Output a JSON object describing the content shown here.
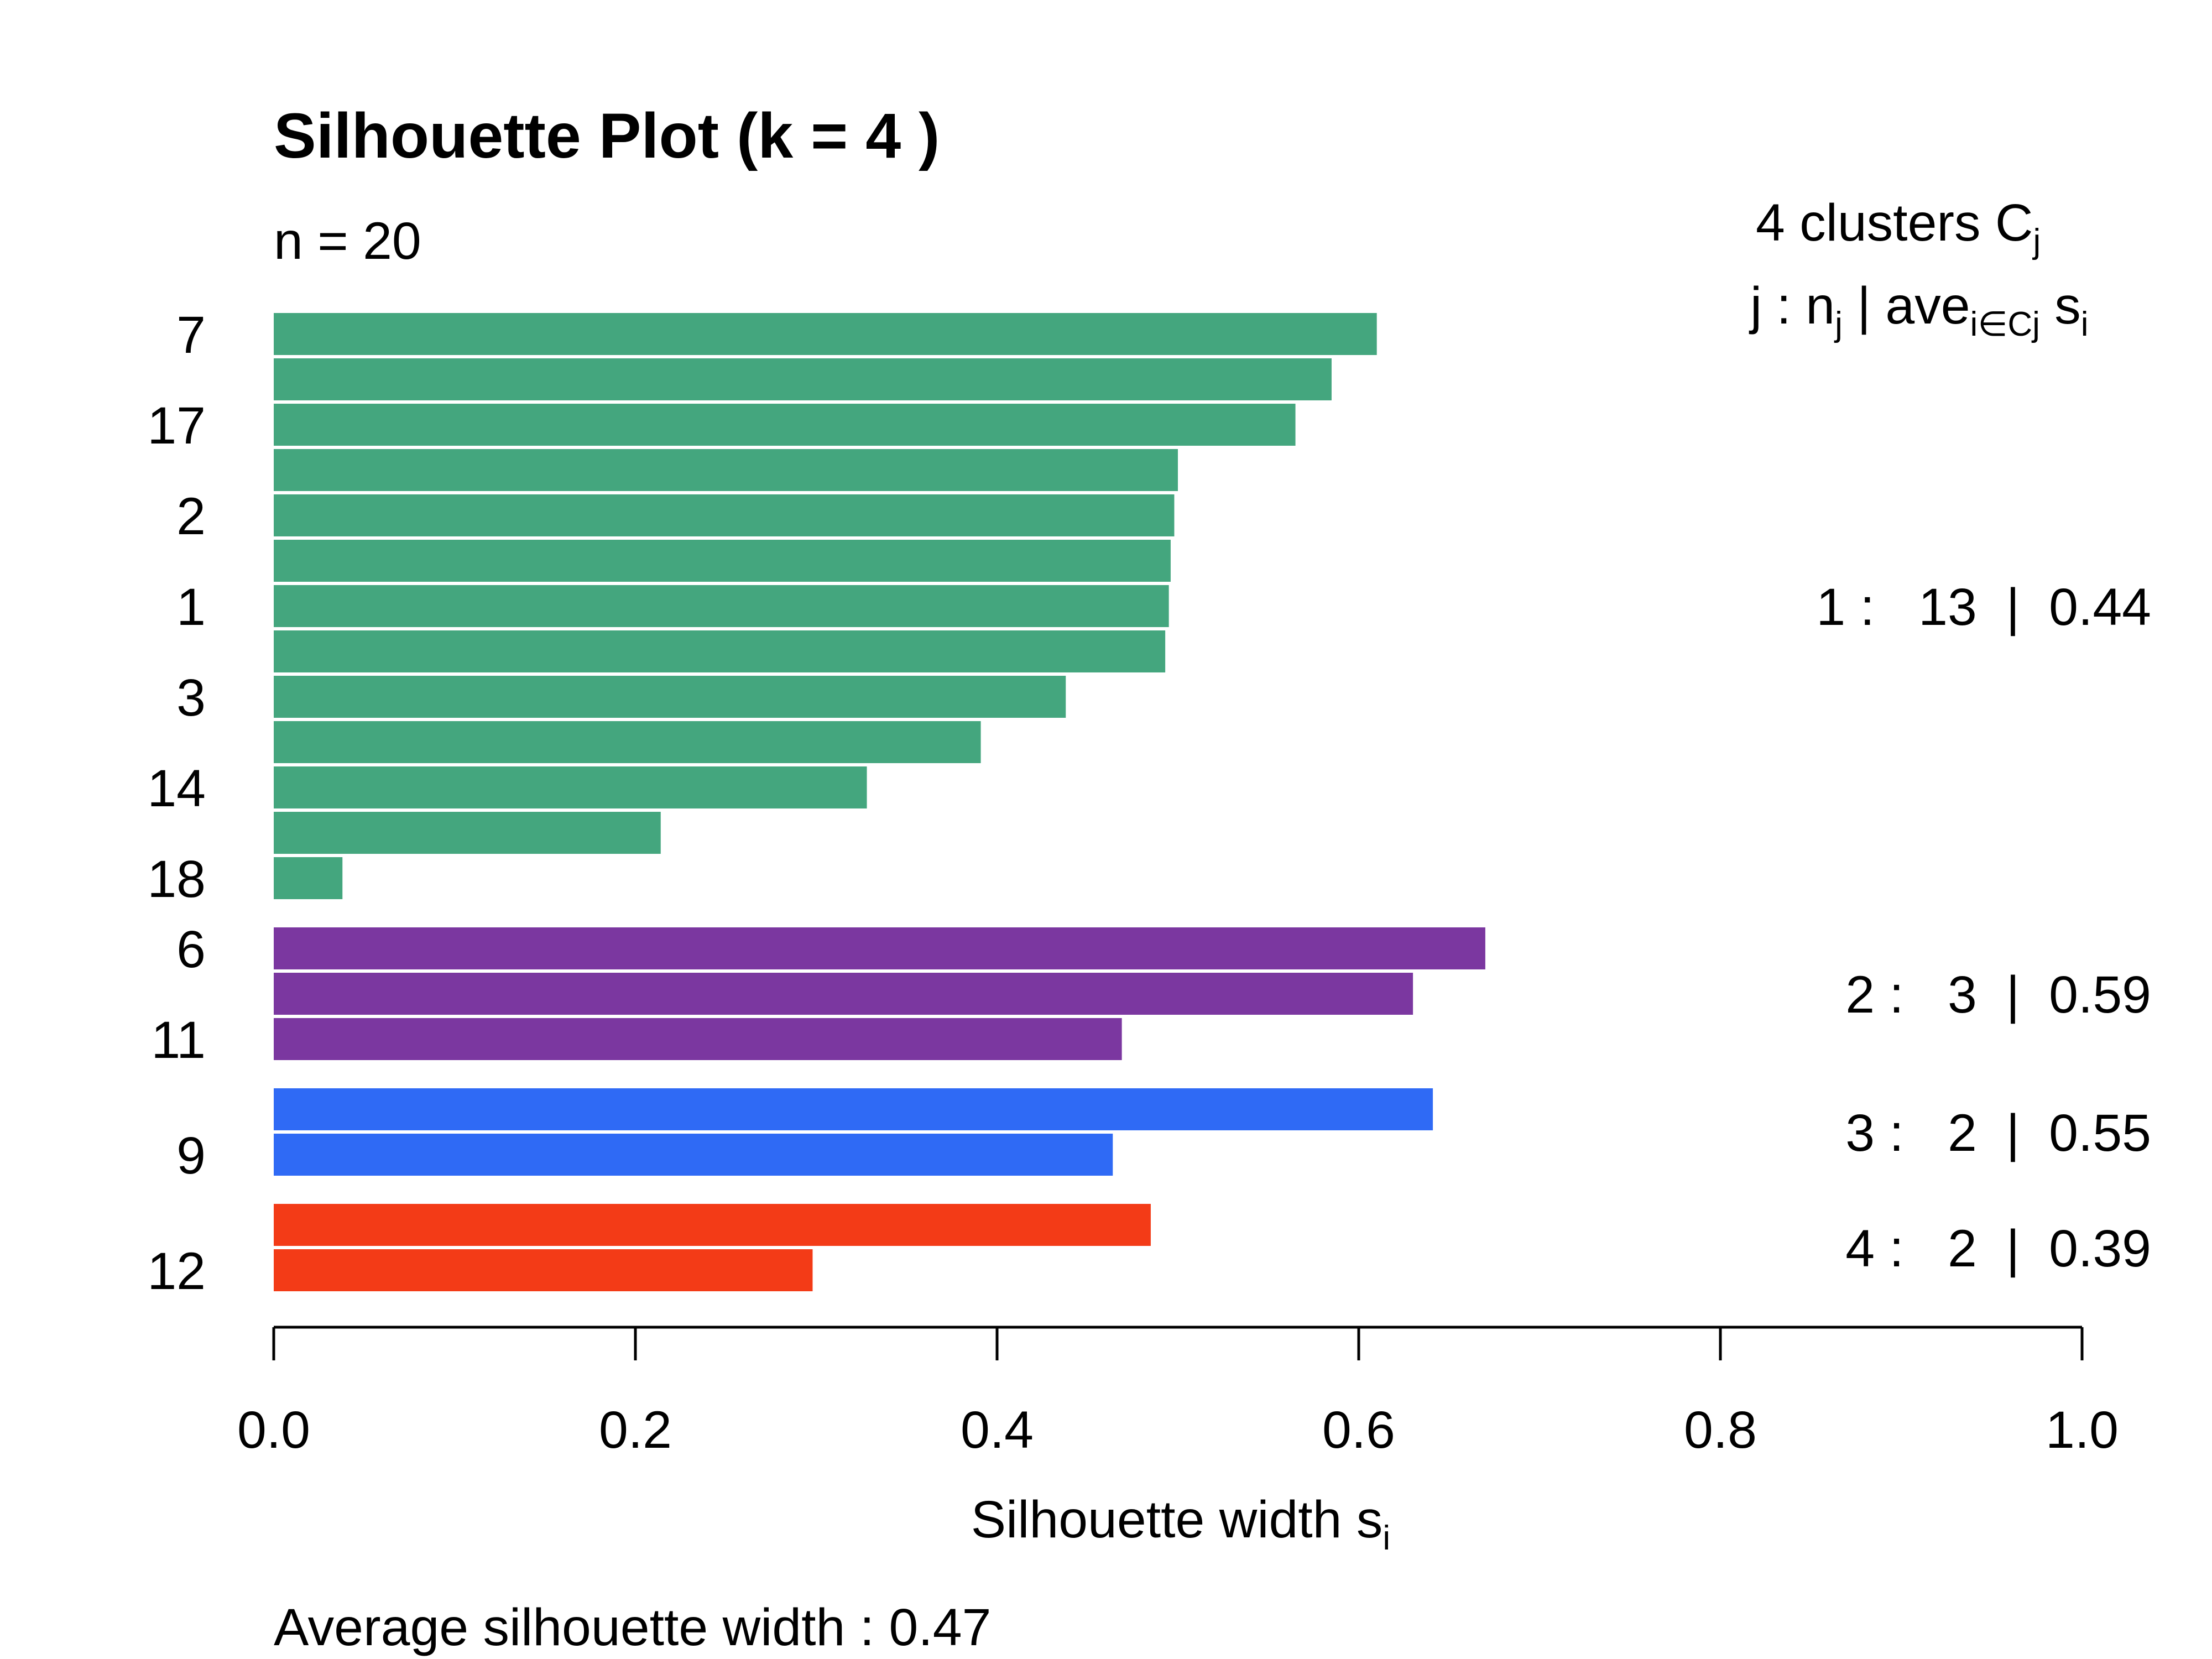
{
  "chart_data": {
    "type": "bar",
    "orientation": "horizontal",
    "title": "Silhouette Plot (k = 4 )",
    "subtitle": "n = 20",
    "xlabel": "Silhouette width s",
    "xlabel_sub": "i",
    "xlim": [
      0,
      1
    ],
    "xticks": [
      "0.0",
      "0.2",
      "0.4",
      "0.6",
      "0.8",
      "1.0"
    ],
    "footer": "Average silhouette width :  0.47",
    "legend": {
      "line1_main": "4  clusters  C",
      "line1_sub": "j",
      "line2_a": "j :  n",
      "line2_a_sub": "j",
      "line2_b": " | ave",
      "line2_b_sub": "i∈Cj",
      "line2_c": "  s",
      "line2_c_sub": "i"
    },
    "clusters": [
      {
        "id": "1",
        "color": "#44a67e",
        "summary": "1 :   13  |  0.44",
        "values": [
          0.61,
          0.585,
          0.565,
          0.5,
          0.498,
          0.496,
          0.495,
          0.493,
          0.438,
          0.391,
          0.328,
          0.214,
          0.038
        ],
        "labels": [
          "7",
          "",
          "17",
          "",
          "2",
          "",
          "1",
          "",
          "3",
          "",
          "14",
          "",
          "18"
        ]
      },
      {
        "id": "2",
        "color": "#7b37a0",
        "summary": "2 :   3  |  0.59",
        "values": [
          0.67,
          0.63,
          0.469
        ],
        "labels": [
          "6",
          "",
          "11"
        ]
      },
      {
        "id": "3",
        "color": "#2f6af5",
        "summary": "3 :   2  |  0.55",
        "values": [
          0.641,
          0.464
        ],
        "labels": [
          "",
          "9"
        ]
      },
      {
        "id": "4",
        "color": "#f33b17",
        "summary": "4 :   2  |  0.39",
        "values": [
          0.485,
          0.298
        ],
        "labels": [
          "",
          "12"
        ]
      }
    ]
  }
}
